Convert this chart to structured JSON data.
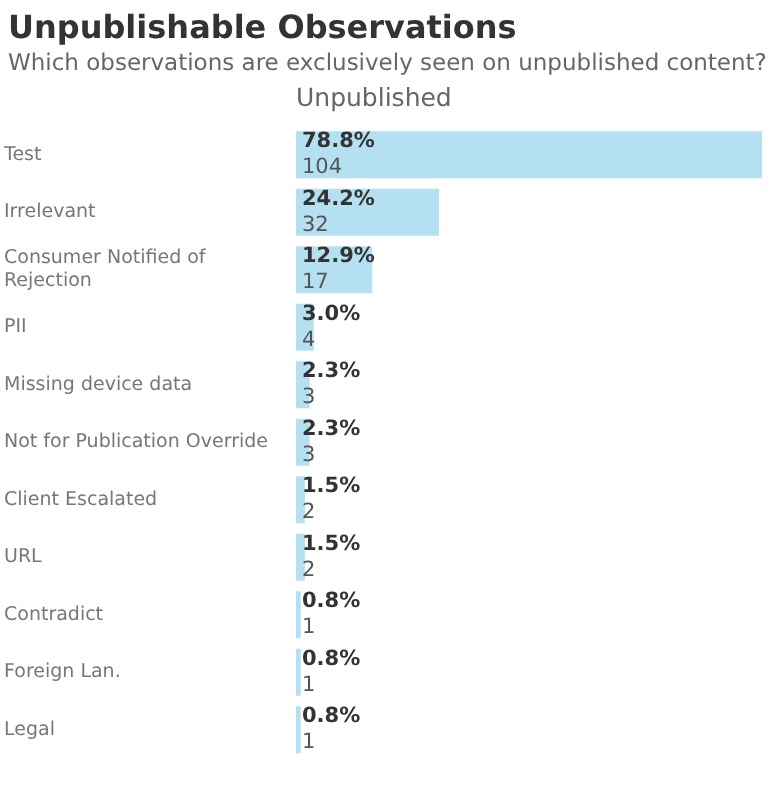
{
  "chart_data": {
    "type": "bar",
    "orientation": "horizontal",
    "tick_labels": "y",
    "title": "Unpublishable Observations",
    "subtitle": "Which observations are exclusively seen on unpublished content?",
    "xlabel": "Unpublished",
    "categories": [
      "Test",
      "Irrelevant",
      "Consumer Notified of Rejection",
      "PII",
      "Missing device data",
      "Not for Publication Override",
      "Client Escalated",
      "URL",
      "Contradict",
      "Foreign Lan.",
      "Legal"
    ],
    "values": [
      78.8,
      24.2,
      12.9,
      3.0,
      2.3,
      2.3,
      1.5,
      1.5,
      0.8,
      0.8,
      0.8
    ],
    "value_labels": [
      "78.8%\n104",
      "24.2%\n32",
      "12.9%\n17",
      "3.0%\n4",
      "2.3%\n3",
      "2.3%\n3",
      "1.5%\n2",
      "1.5%\n2",
      "0.8%\n1",
      "0.8%\n1",
      "0.8%\n1"
    ],
    "color": "#b4e0f2",
    "grid": false,
    "legend": false
  }
}
